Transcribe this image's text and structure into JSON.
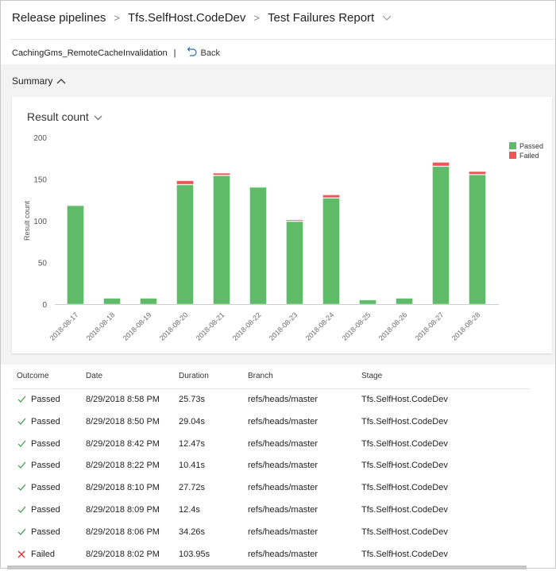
{
  "breadcrumb": [
    "Release pipelines",
    "Tfs.SelfHost.CodeDev",
    "Test Failures Report"
  ],
  "subheader": {
    "test_name": "CachingGms_RemoteCacheInvalidation",
    "divider": "|",
    "back_label": "Back"
  },
  "summary": {
    "label": "Summary"
  },
  "chart_data": {
    "type": "bar",
    "stacked": true,
    "title": "Result count",
    "ylabel": "Result count",
    "xlabel": "",
    "ylim": [
      0,
      200
    ],
    "yticks": [
      0,
      50,
      100,
      150,
      200
    ],
    "grid": false,
    "legend": "top-right",
    "categories": [
      "2018-08-17",
      "2018-08-18",
      "2018-08-19",
      "2018-08-20",
      "2018-08-21",
      "2018-08-22",
      "2018-08-23",
      "2018-08-24",
      "2018-08-25",
      "2018-08-26",
      "2018-08-27",
      "2018-08-28"
    ],
    "series": [
      {
        "name": "Passed",
        "color": "#5fbb68",
        "values": [
          118,
          7,
          7,
          143,
          154,
          140,
          99,
          127,
          5,
          7,
          165,
          155
        ]
      },
      {
        "name": "Failed",
        "color": "#ee5555",
        "values": [
          1,
          0,
          0,
          5,
          3,
          1,
          2,
          4,
          0,
          0,
          5,
          4
        ]
      }
    ]
  },
  "table": {
    "columns": [
      "Outcome",
      "Date",
      "Duration",
      "Branch",
      "Stage"
    ],
    "rows": [
      {
        "outcome": "Passed",
        "date": "8/29/2018 8:58 PM",
        "duration": "25.73s",
        "branch": "refs/heads/master",
        "stage": "Tfs.SelfHost.CodeDev"
      },
      {
        "outcome": "Passed",
        "date": "8/29/2018 8:50 PM",
        "duration": "29.04s",
        "branch": "refs/heads/master",
        "stage": "Tfs.SelfHost.CodeDev"
      },
      {
        "outcome": "Passed",
        "date": "8/29/2018 8:42 PM",
        "duration": "12.47s",
        "branch": "refs/heads/master",
        "stage": "Tfs.SelfHost.CodeDev"
      },
      {
        "outcome": "Passed",
        "date": "8/29/2018 8:22 PM",
        "duration": "10.41s",
        "branch": "refs/heads/master",
        "stage": "Tfs.SelfHost.CodeDev"
      },
      {
        "outcome": "Passed",
        "date": "8/29/2018 8:10 PM",
        "duration": "27.72s",
        "branch": "refs/heads/master",
        "stage": "Tfs.SelfHost.CodeDev"
      },
      {
        "outcome": "Passed",
        "date": "8/29/2018 8:09 PM",
        "duration": "12.4s",
        "branch": "refs/heads/master",
        "stage": "Tfs.SelfHost.CodeDev"
      },
      {
        "outcome": "Passed",
        "date": "8/29/2018 8:06 PM",
        "duration": "34.26s",
        "branch": "refs/heads/master",
        "stage": "Tfs.SelfHost.CodeDev"
      },
      {
        "outcome": "Failed",
        "date": "8/29/2018 8:02 PM",
        "duration": "103.95s",
        "branch": "refs/heads/master",
        "stage": "Tfs.SelfHost.CodeDev"
      }
    ]
  }
}
